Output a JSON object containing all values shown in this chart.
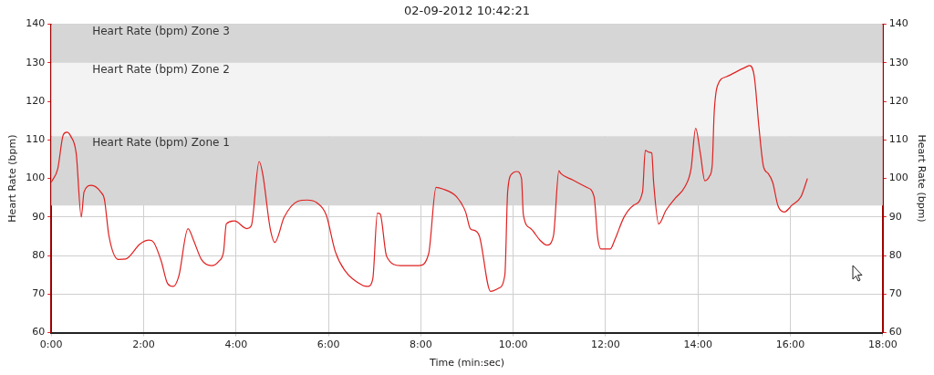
{
  "chart_data": {
    "type": "line",
    "title": "02-09-2012 10:42:21",
    "xlabel": "Time (min:sec)",
    "ylabel": "Heart Rate (bpm)",
    "y2label": "Heart Rate (bpm)",
    "xlim": [
      0,
      18
    ],
    "xticks": [
      {
        "value": 0,
        "label": "0:00"
      },
      {
        "value": 2,
        "label": "2:00"
      },
      {
        "value": 4,
        "label": "4:00"
      },
      {
        "value": 6,
        "label": "6:00"
      },
      {
        "value": 8,
        "label": "8:00"
      },
      {
        "value": 10,
        "label": "10:00"
      },
      {
        "value": 12,
        "label": "12:00"
      },
      {
        "value": 14,
        "label": "14:00"
      },
      {
        "value": 16,
        "label": "16:00"
      },
      {
        "value": 18,
        "label": "18:00"
      }
    ],
    "ylim": [
      60,
      140
    ],
    "yticks": [
      60,
      70,
      80,
      90,
      100,
      110,
      120,
      130,
      140
    ],
    "y2lim": [
      60,
      140
    ],
    "y2ticks": [
      60,
      70,
      80,
      90,
      100,
      110,
      120,
      130,
      140
    ],
    "grid": true,
    "legend": false,
    "marker": "none",
    "line_style": "solid",
    "bands": [
      {
        "axis": "y",
        "from": 130,
        "to": 140,
        "label": "Heart Rate (bpm) Zone 3",
        "color": "#d6d6d6"
      },
      {
        "axis": "y",
        "from": 111,
        "to": 130,
        "label": "Heart Rate (bpm) Zone 2",
        "color": "#f3f3f3"
      },
      {
        "axis": "y",
        "from": 93,
        "to": 111,
        "label": "Heart Rate (bpm) Zone 1",
        "color": "#d6d6d6"
      }
    ],
    "series": [
      {
        "color": "#e02020",
        "x": [
          0,
          0.14,
          0.26,
          0.34,
          0.42,
          0.54,
          0.65,
          0.71,
          0.87,
          1.07,
          1.15,
          1.25,
          1.45,
          1.61,
          1.92,
          2.12,
          2.22,
          2.38,
          2.52,
          2.64,
          2.76,
          2.96,
          3.08,
          3.25,
          3.47,
          3.63,
          3.73,
          3.79,
          3.97,
          4.23,
          4.33,
          4.5,
          4.58,
          4.74,
          4.84,
          5.04,
          5.34,
          5.54,
          5.75,
          5.95,
          6.15,
          6.35,
          6.75,
          6.85,
          6.96,
          7.06,
          7.12,
          7.26,
          7.56,
          7.96,
          8.17,
          8.33,
          8.47,
          8.77,
          8.97,
          9.07,
          9.17,
          9.27,
          9.51,
          9.68,
          9.82,
          9.88,
          9.98,
          10.08,
          10.18,
          10.22,
          10.38,
          10.58,
          10.73,
          10.87,
          10.99,
          11.03,
          11.29,
          11.59,
          11.75,
          11.83,
          11.9,
          12.1,
          12.2,
          12.4,
          12.6,
          12.8,
          12.86,
          12.94,
          13,
          13.04,
          13.15,
          13.31,
          13.51,
          13.71,
          13.85,
          13.95,
          14.05,
          14.15,
          14.25,
          14.31,
          14.35,
          14.42,
          14.62,
          15.02,
          15.12,
          15.22,
          15.32,
          15.42,
          15.52,
          15.62,
          15.73,
          15.87,
          16.03,
          16.23,
          16.37
        ],
        "values": [
          99,
          102.5,
          111.3,
          112,
          111,
          106.5,
          90,
          96.5,
          98.2,
          96.5,
          94.6,
          85,
          79,
          79.1,
          83,
          84,
          83.4,
          78.6,
          72.7,
          72,
          74.6,
          87,
          84,
          79,
          77.4,
          78.6,
          81,
          88.2,
          89,
          87,
          87.7,
          104.4,
          101,
          87,
          83.4,
          89.9,
          94.1,
          94.4,
          93.7,
          90.6,
          81,
          76.2,
          72.2,
          72,
          73.9,
          91,
          90.8,
          79.8,
          77.4,
          77.4,
          80.5,
          97.7,
          97.3,
          95.3,
          91.3,
          87,
          86.5,
          85,
          70.7,
          71.5,
          75,
          96.5,
          101.3,
          101.8,
          100,
          90.6,
          87,
          84,
          82.7,
          85,
          102,
          101.3,
          99.6,
          97.7,
          95.3,
          84.6,
          81.7,
          81.7,
          84.1,
          90,
          93,
          96.5,
          107.3,
          106.8,
          106.6,
          99,
          88.2,
          91.8,
          94.9,
          97.7,
          102.5,
          113,
          106.6,
          99.4,
          100.6,
          103.7,
          116.8,
          124,
          126.4,
          128.8,
          129.3,
          126.4,
          113.3,
          103,
          101.3,
          98.9,
          93,
          91.3,
          93,
          95.3,
          100
        ]
      }
    ]
  }
}
